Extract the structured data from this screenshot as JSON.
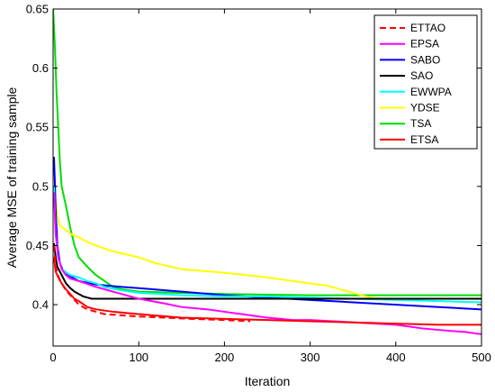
{
  "chart_data": {
    "type": "line",
    "title": "",
    "xlabel": "Iteration",
    "ylabel": "Average MSE of training sample",
    "xlim": [
      0,
      500
    ],
    "ylim": [
      0.365,
      0.65
    ],
    "xticks": [
      0,
      100,
      200,
      300,
      400,
      500
    ],
    "yticks": [
      0.4,
      0.45,
      0.5,
      0.55,
      0.6,
      0.65
    ],
    "xtick_labels": [
      "0",
      "100",
      "200",
      "300",
      "400",
      "500"
    ],
    "ytick_labels": [
      "0.4",
      "0.45",
      "0.5",
      "0.55",
      "0.6",
      "0.65"
    ],
    "grid": false,
    "legend_position": "top-right",
    "series": [
      {
        "name": "ETTAO",
        "color": "#ff0000",
        "dash": "dashed",
        "points": [
          [
            1,
            0.45
          ],
          [
            3,
            0.432
          ],
          [
            6,
            0.424
          ],
          [
            10,
            0.418
          ],
          [
            15,
            0.412
          ],
          [
            20,
            0.408
          ],
          [
            30,
            0.4
          ],
          [
            40,
            0.396
          ],
          [
            50,
            0.394
          ],
          [
            60,
            0.392
          ],
          [
            80,
            0.391
          ],
          [
            100,
            0.39
          ],
          [
            130,
            0.389
          ],
          [
            160,
            0.388
          ],
          [
            200,
            0.387
          ],
          [
            230,
            0.386
          ]
        ]
      },
      {
        "name": "EPSA",
        "color": "#ff00ff",
        "dash": "solid",
        "points": [
          [
            1,
            0.495
          ],
          [
            3,
            0.46
          ],
          [
            6,
            0.44
          ],
          [
            10,
            0.43
          ],
          [
            15,
            0.425
          ],
          [
            20,
            0.422
          ],
          [
            30,
            0.42
          ],
          [
            50,
            0.415
          ],
          [
            70,
            0.411
          ],
          [
            100,
            0.405
          ],
          [
            130,
            0.401
          ],
          [
            150,
            0.398
          ],
          [
            180,
            0.396
          ],
          [
            200,
            0.394
          ],
          [
            230,
            0.391
          ],
          [
            250,
            0.389
          ],
          [
            280,
            0.387
          ],
          [
            300,
            0.387
          ],
          [
            350,
            0.385
          ],
          [
            400,
            0.383
          ],
          [
            430,
            0.38
          ],
          [
            460,
            0.378
          ],
          [
            480,
            0.377
          ],
          [
            500,
            0.375
          ]
        ]
      },
      {
        "name": "SABO",
        "color": "#0000ff",
        "dash": "solid",
        "points": [
          [
            1,
            0.525
          ],
          [
            2,
            0.505
          ],
          [
            3,
            0.48
          ],
          [
            5,
            0.45
          ],
          [
            8,
            0.435
          ],
          [
            12,
            0.428
          ],
          [
            20,
            0.424
          ],
          [
            30,
            0.42
          ],
          [
            50,
            0.417
          ],
          [
            80,
            0.415
          ],
          [
            100,
            0.414
          ],
          [
            150,
            0.411
          ],
          [
            200,
            0.408
          ],
          [
            250,
            0.406
          ],
          [
            300,
            0.404
          ],
          [
            350,
            0.402
          ],
          [
            400,
            0.4
          ],
          [
            450,
            0.398
          ],
          [
            500,
            0.396
          ]
        ]
      },
      {
        "name": "SAO",
        "color": "#000000",
        "dash": "solid",
        "points": [
          [
            1,
            0.452
          ],
          [
            3,
            0.44
          ],
          [
            5,
            0.432
          ],
          [
            10,
            0.425
          ],
          [
            15,
            0.418
          ],
          [
            20,
            0.414
          ],
          [
            25,
            0.411
          ],
          [
            30,
            0.409
          ],
          [
            35,
            0.407
          ],
          [
            40,
            0.406
          ],
          [
            45,
            0.405
          ],
          [
            100,
            0.405
          ],
          [
            200,
            0.405
          ],
          [
            300,
            0.405
          ],
          [
            400,
            0.405
          ],
          [
            500,
            0.405
          ]
        ]
      },
      {
        "name": "EWWPA",
        "color": "#00ffff",
        "dash": "solid",
        "points": [
          [
            1,
            0.5
          ],
          [
            3,
            0.46
          ],
          [
            6,
            0.44
          ],
          [
            10,
            0.43
          ],
          [
            20,
            0.425
          ],
          [
            30,
            0.423
          ],
          [
            40,
            0.42
          ],
          [
            50,
            0.418
          ],
          [
            60,
            0.415
          ],
          [
            80,
            0.412
          ],
          [
            100,
            0.41
          ],
          [
            150,
            0.408
          ],
          [
            200,
            0.407
          ],
          [
            250,
            0.407
          ],
          [
            300,
            0.406
          ],
          [
            350,
            0.405
          ],
          [
            400,
            0.404
          ],
          [
            450,
            0.403
          ],
          [
            500,
            0.402
          ]
        ]
      },
      {
        "name": "YDSE",
        "color": "#ffff00",
        "dash": "solid",
        "points": [
          [
            1,
            0.525
          ],
          [
            2,
            0.505
          ],
          [
            3,
            0.49
          ],
          [
            5,
            0.475
          ],
          [
            8,
            0.467
          ],
          [
            15,
            0.463
          ],
          [
            20,
            0.46
          ],
          [
            30,
            0.457
          ],
          [
            40,
            0.453
          ],
          [
            50,
            0.45
          ],
          [
            70,
            0.445
          ],
          [
            100,
            0.44
          ],
          [
            120,
            0.435
          ],
          [
            150,
            0.43
          ],
          [
            200,
            0.427
          ],
          [
            250,
            0.423
          ],
          [
            300,
            0.418
          ],
          [
            320,
            0.416
          ],
          [
            350,
            0.41
          ],
          [
            370,
            0.406
          ],
          [
            400,
            0.404
          ],
          [
            450,
            0.403
          ],
          [
            500,
            0.402
          ]
        ]
      },
      {
        "name": "TSA",
        "color": "#00dd00",
        "dash": "solid",
        "points": [
          [
            0,
            0.65
          ],
          [
            2,
            0.62
          ],
          [
            4,
            0.58
          ],
          [
            6,
            0.55
          ],
          [
            8,
            0.52
          ],
          [
            10,
            0.5
          ],
          [
            13,
            0.49
          ],
          [
            16,
            0.48
          ],
          [
            20,
            0.465
          ],
          [
            25,
            0.45
          ],
          [
            30,
            0.44
          ],
          [
            40,
            0.432
          ],
          [
            50,
            0.425
          ],
          [
            60,
            0.42
          ],
          [
            70,
            0.415
          ],
          [
            80,
            0.413
          ],
          [
            100,
            0.411
          ],
          [
            150,
            0.41
          ],
          [
            200,
            0.409
          ],
          [
            300,
            0.408
          ],
          [
            400,
            0.408
          ],
          [
            500,
            0.408
          ]
        ]
      },
      {
        "name": "ETSA",
        "color": "#ff0000",
        "dash": "solid",
        "points": [
          [
            1,
            0.44
          ],
          [
            3,
            0.428
          ],
          [
            6,
            0.423
          ],
          [
            10,
            0.418
          ],
          [
            15,
            0.413
          ],
          [
            20,
            0.409
          ],
          [
            25,
            0.405
          ],
          [
            30,
            0.403
          ],
          [
            40,
            0.398
          ],
          [
            50,
            0.396
          ],
          [
            70,
            0.394
          ],
          [
            100,
            0.392
          ],
          [
            150,
            0.389
          ],
          [
            200,
            0.388
          ],
          [
            250,
            0.387
          ],
          [
            300,
            0.386
          ],
          [
            350,
            0.385
          ],
          [
            400,
            0.384
          ],
          [
            450,
            0.383
          ],
          [
            500,
            0.383
          ]
        ]
      }
    ]
  }
}
